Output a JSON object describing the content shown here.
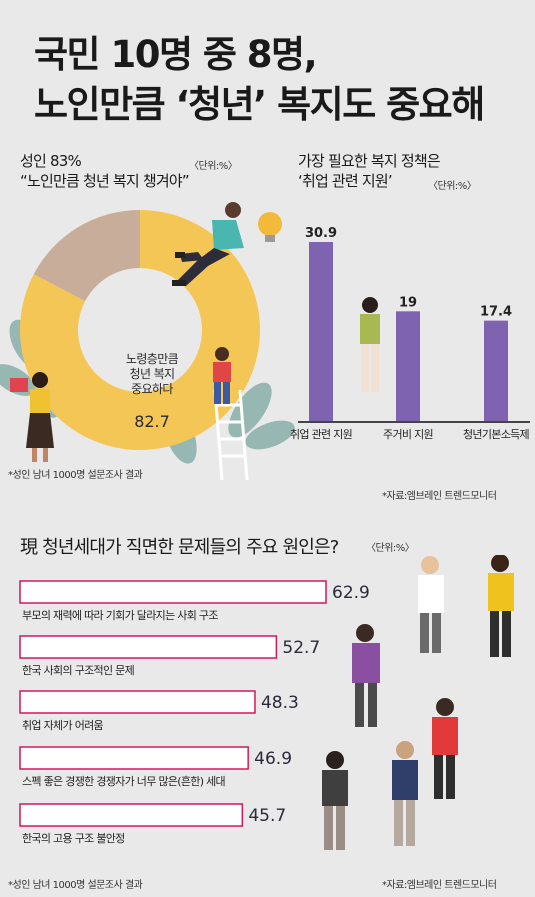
{
  "title": {
    "line1": "국민 10명 중 8명,",
    "line2": "노인만큼 ‘청년’ 복지도 중요해"
  },
  "donut_section": {
    "heading_line1": "성인 83%",
    "heading_line2": "“노인만큼 청년 복지 챙겨야”",
    "unit": "〈단위:%〉",
    "footnote": "*성인 남녀 1000명 설문조사 결과",
    "center_lines": [
      "노령층만큼",
      "청년 복지",
      "중요하다"
    ],
    "center_value": "82.7"
  },
  "bar_section": {
    "heading_line1": "가장 필요한 복지 정책은",
    "heading_line2": "‘취업 관련 지원’",
    "unit": "〈단위:%〉",
    "source": "*자료:엠브레인 트렌드모니터"
  },
  "hbar_section": {
    "heading": "現 청년세대가 직면한 문제들의 주요 원인은?",
    "unit": "〈단위:%〉",
    "footnote": "*성인 남녀 1000명 설문조사 결과",
    "source": "*자료:엠브레인 트렌드모니터"
  },
  "colors": {
    "donut_main": "#f4c656",
    "donut_rest": "#c8ae9a",
    "bar": "#7e63b0",
    "hbar_border": "#d0195e",
    "leaf": "#8fb2ad"
  },
  "chart_data": [
    {
      "type": "pie",
      "labels": [
        "노령층만큼 청년 복지 중요하다",
        ""
      ],
      "values": [
        82.7,
        17.3
      ],
      "value_labels": [
        "82.7"
      ]
    },
    {
      "type": "bar",
      "categories": [
        "취업 관련 지원",
        "주거비 지원",
        "청년기본소득제"
      ],
      "values": [
        30.9,
        19,
        17.4
      ],
      "value_labels": [
        "30.9",
        "19",
        "17.4"
      ],
      "ylim": [
        0,
        34
      ]
    },
    {
      "type": "bar",
      "orientation": "horizontal",
      "categories": [
        "부모의 재력에 따라 기회가 달라지는 사회 구조",
        "한국 사회의 구조적인 문제",
        "취업 자체가 어려움",
        "스펙 좋은 경쟁한 경쟁자가 너무 많은(흔한) 세대",
        "한국의 고용 구조 불안정"
      ],
      "values": [
        62.9,
        52.7,
        48.3,
        46.9,
        45.7
      ],
      "value_labels": [
        "62.9",
        "52.7",
        "48.3",
        "46.9",
        "45.7"
      ],
      "xlim": [
        0,
        62.9
      ]
    }
  ]
}
